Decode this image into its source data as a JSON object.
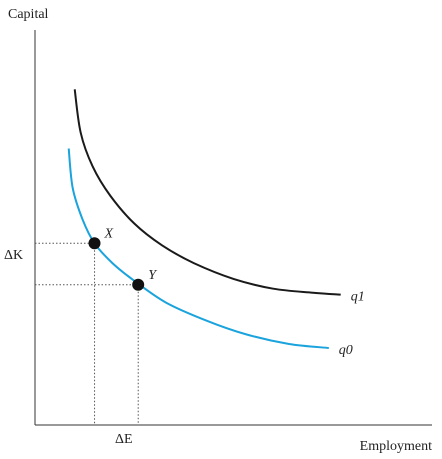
{
  "chart_data": {
    "type": "line",
    "title": "",
    "xlabel": "Employment",
    "ylabel": "Capital",
    "xlim": [
      0,
      10
    ],
    "ylim": [
      0,
      10
    ],
    "grid": false,
    "legend": "none",
    "colors": {
      "q1": "#1a1a1a",
      "q0": "#1aa3dc",
      "guides": "#555555",
      "points": "#111111"
    },
    "series": [
      {
        "name": "q1",
        "x": [
          1.0,
          1.15,
          1.45,
          1.9,
          2.5,
          3.2,
          4.0,
          5.0,
          6.0,
          7.0,
          7.7
        ],
        "y": [
          8.5,
          7.4,
          6.55,
          5.8,
          5.1,
          4.55,
          4.1,
          3.7,
          3.45,
          3.35,
          3.3
        ]
      },
      {
        "name": "q0",
        "x": [
          0.85,
          0.95,
          1.2,
          1.5,
          1.95,
          2.5,
          3.3,
          4.3,
          5.3,
          6.4,
          7.4
        ],
        "y": [
          7.0,
          6.0,
          5.2,
          4.6,
          4.1,
          3.65,
          3.1,
          2.65,
          2.3,
          2.05,
          1.95
        ]
      }
    ],
    "points": [
      {
        "name": "X",
        "x": 1.5,
        "y": 4.6
      },
      {
        "name": "Y",
        "x": 2.6,
        "y": 3.55
      }
    ],
    "annotations": {
      "delta_k": "ΔK",
      "delta_e": "ΔE"
    }
  }
}
